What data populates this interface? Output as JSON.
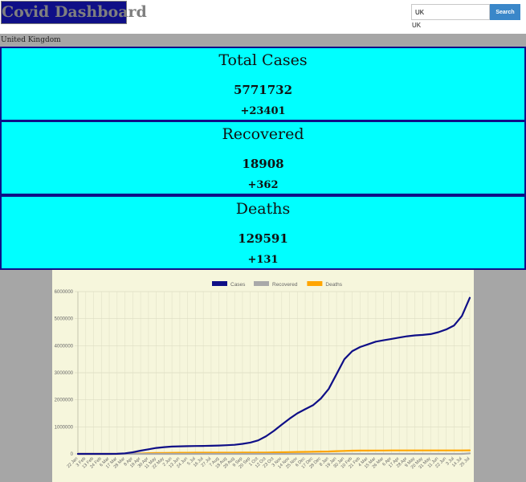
{
  "header": {
    "title": "Covid Dashboard",
    "search_value": "UK",
    "search_button": "Search",
    "search_echo": "UK"
  },
  "country": "United Kingdom",
  "cards": {
    "cases": {
      "title": "Total Cases",
      "value": "5771732",
      "delta": "+23401"
    },
    "recovered": {
      "title": "Recovered",
      "value": "18908",
      "delta": "+362"
    },
    "deaths": {
      "title": "Deaths",
      "value": "129591",
      "delta": "+131"
    }
  },
  "colors": {
    "logo_bg": "#0f0f87",
    "card_bg": "#00ffff",
    "search_button": "#3a87c9",
    "chart_bg": "#f6f6dc"
  },
  "chart_data": {
    "type": "line",
    "x": [
      "22 Jan",
      "3 Feb",
      "13 Feb",
      "24 Feb",
      "6 Mar",
      "17 Mar",
      "28 Mar",
      "8 Apr",
      "19 Apr",
      "30 Apr",
      "11 May",
      "22 May",
      "2 Jun",
      "13 Jun",
      "24 Jun",
      "5 Jul",
      "16 Jul",
      "27 Jul",
      "7 Aug",
      "18 Aug",
      "29 Aug",
      "9 Sep",
      "20 Sep",
      "1 Oct",
      "12 Oct",
      "23 Oct",
      "3 Nov",
      "14 Nov",
      "25 Nov",
      "6 Dec",
      "17 Dec",
      "28 Dec",
      "8 Jan",
      "19 Jan",
      "30 Jan",
      "10 Feb",
      "21 Feb",
      "4 Mar",
      "15 Mar",
      "26 Mar",
      "6 Apr",
      "17 Apr",
      "28 Apr",
      "9 May",
      "20 May",
      "31 May",
      "11 Jun",
      "22 Jun",
      "3 Jul",
      "14 Jul",
      "25 Jul"
    ],
    "series": [
      {
        "name": "Cases",
        "color": "#0f0f87",
        "values": [
          0,
          0,
          0,
          0,
          0,
          2000,
          20000,
          60000,
          120000,
          170000,
          220000,
          250000,
          270000,
          280000,
          285000,
          290000,
          295000,
          300000,
          310000,
          320000,
          335000,
          370000,
          420000,
          500000,
          650000,
          850000,
          1080000,
          1300000,
          1500000,
          1650000,
          1800000,
          2050000,
          2400000,
          2950000,
          3500000,
          3800000,
          3950000,
          4050000,
          4150000,
          4200000,
          4250000,
          4300000,
          4350000,
          4380000,
          4400000,
          4430000,
          4500000,
          4600000,
          4750000,
          5100000,
          5771732
        ]
      },
      {
        "name": "Recovered",
        "color": "#a9a9a9",
        "values": [
          0,
          0,
          0,
          0,
          0,
          0,
          0,
          300,
          300,
          300,
          300,
          300,
          300,
          344,
          344,
          344,
          344,
          344,
          344,
          344,
          344,
          344,
          344,
          344,
          344,
          344,
          344,
          344,
          344,
          344,
          344,
          344,
          344,
          344,
          344,
          344,
          344,
          344,
          344,
          344,
          344,
          344,
          344,
          344,
          344,
          344,
          344,
          344,
          344,
          344,
          18908
        ]
      },
      {
        "name": "Deaths",
        "color": "#ffa500",
        "values": [
          0,
          0,
          0,
          0,
          0,
          100,
          1500,
          7000,
          16000,
          27000,
          33000,
          36000,
          40000,
          42000,
          43000,
          44000,
          45000,
          46000,
          46000,
          46000,
          46000,
          47000,
          47000,
          48000,
          50000,
          55000,
          60000,
          65000,
          70000,
          75000,
          80000,
          85000,
          90000,
          100000,
          110000,
          118000,
          121000,
          123000,
          125000,
          126000,
          127000,
          127000,
          127500,
          127800,
          128000,
          128000,
          128100,
          128300,
          128500,
          129000,
          129591
        ]
      }
    ],
    "y_ticks": [
      0,
      1000000,
      2000000,
      3000000,
      4000000,
      5000000,
      6000000
    ],
    "ylim": [
      0,
      6000000
    ],
    "legend": "top-center",
    "grid": true
  }
}
